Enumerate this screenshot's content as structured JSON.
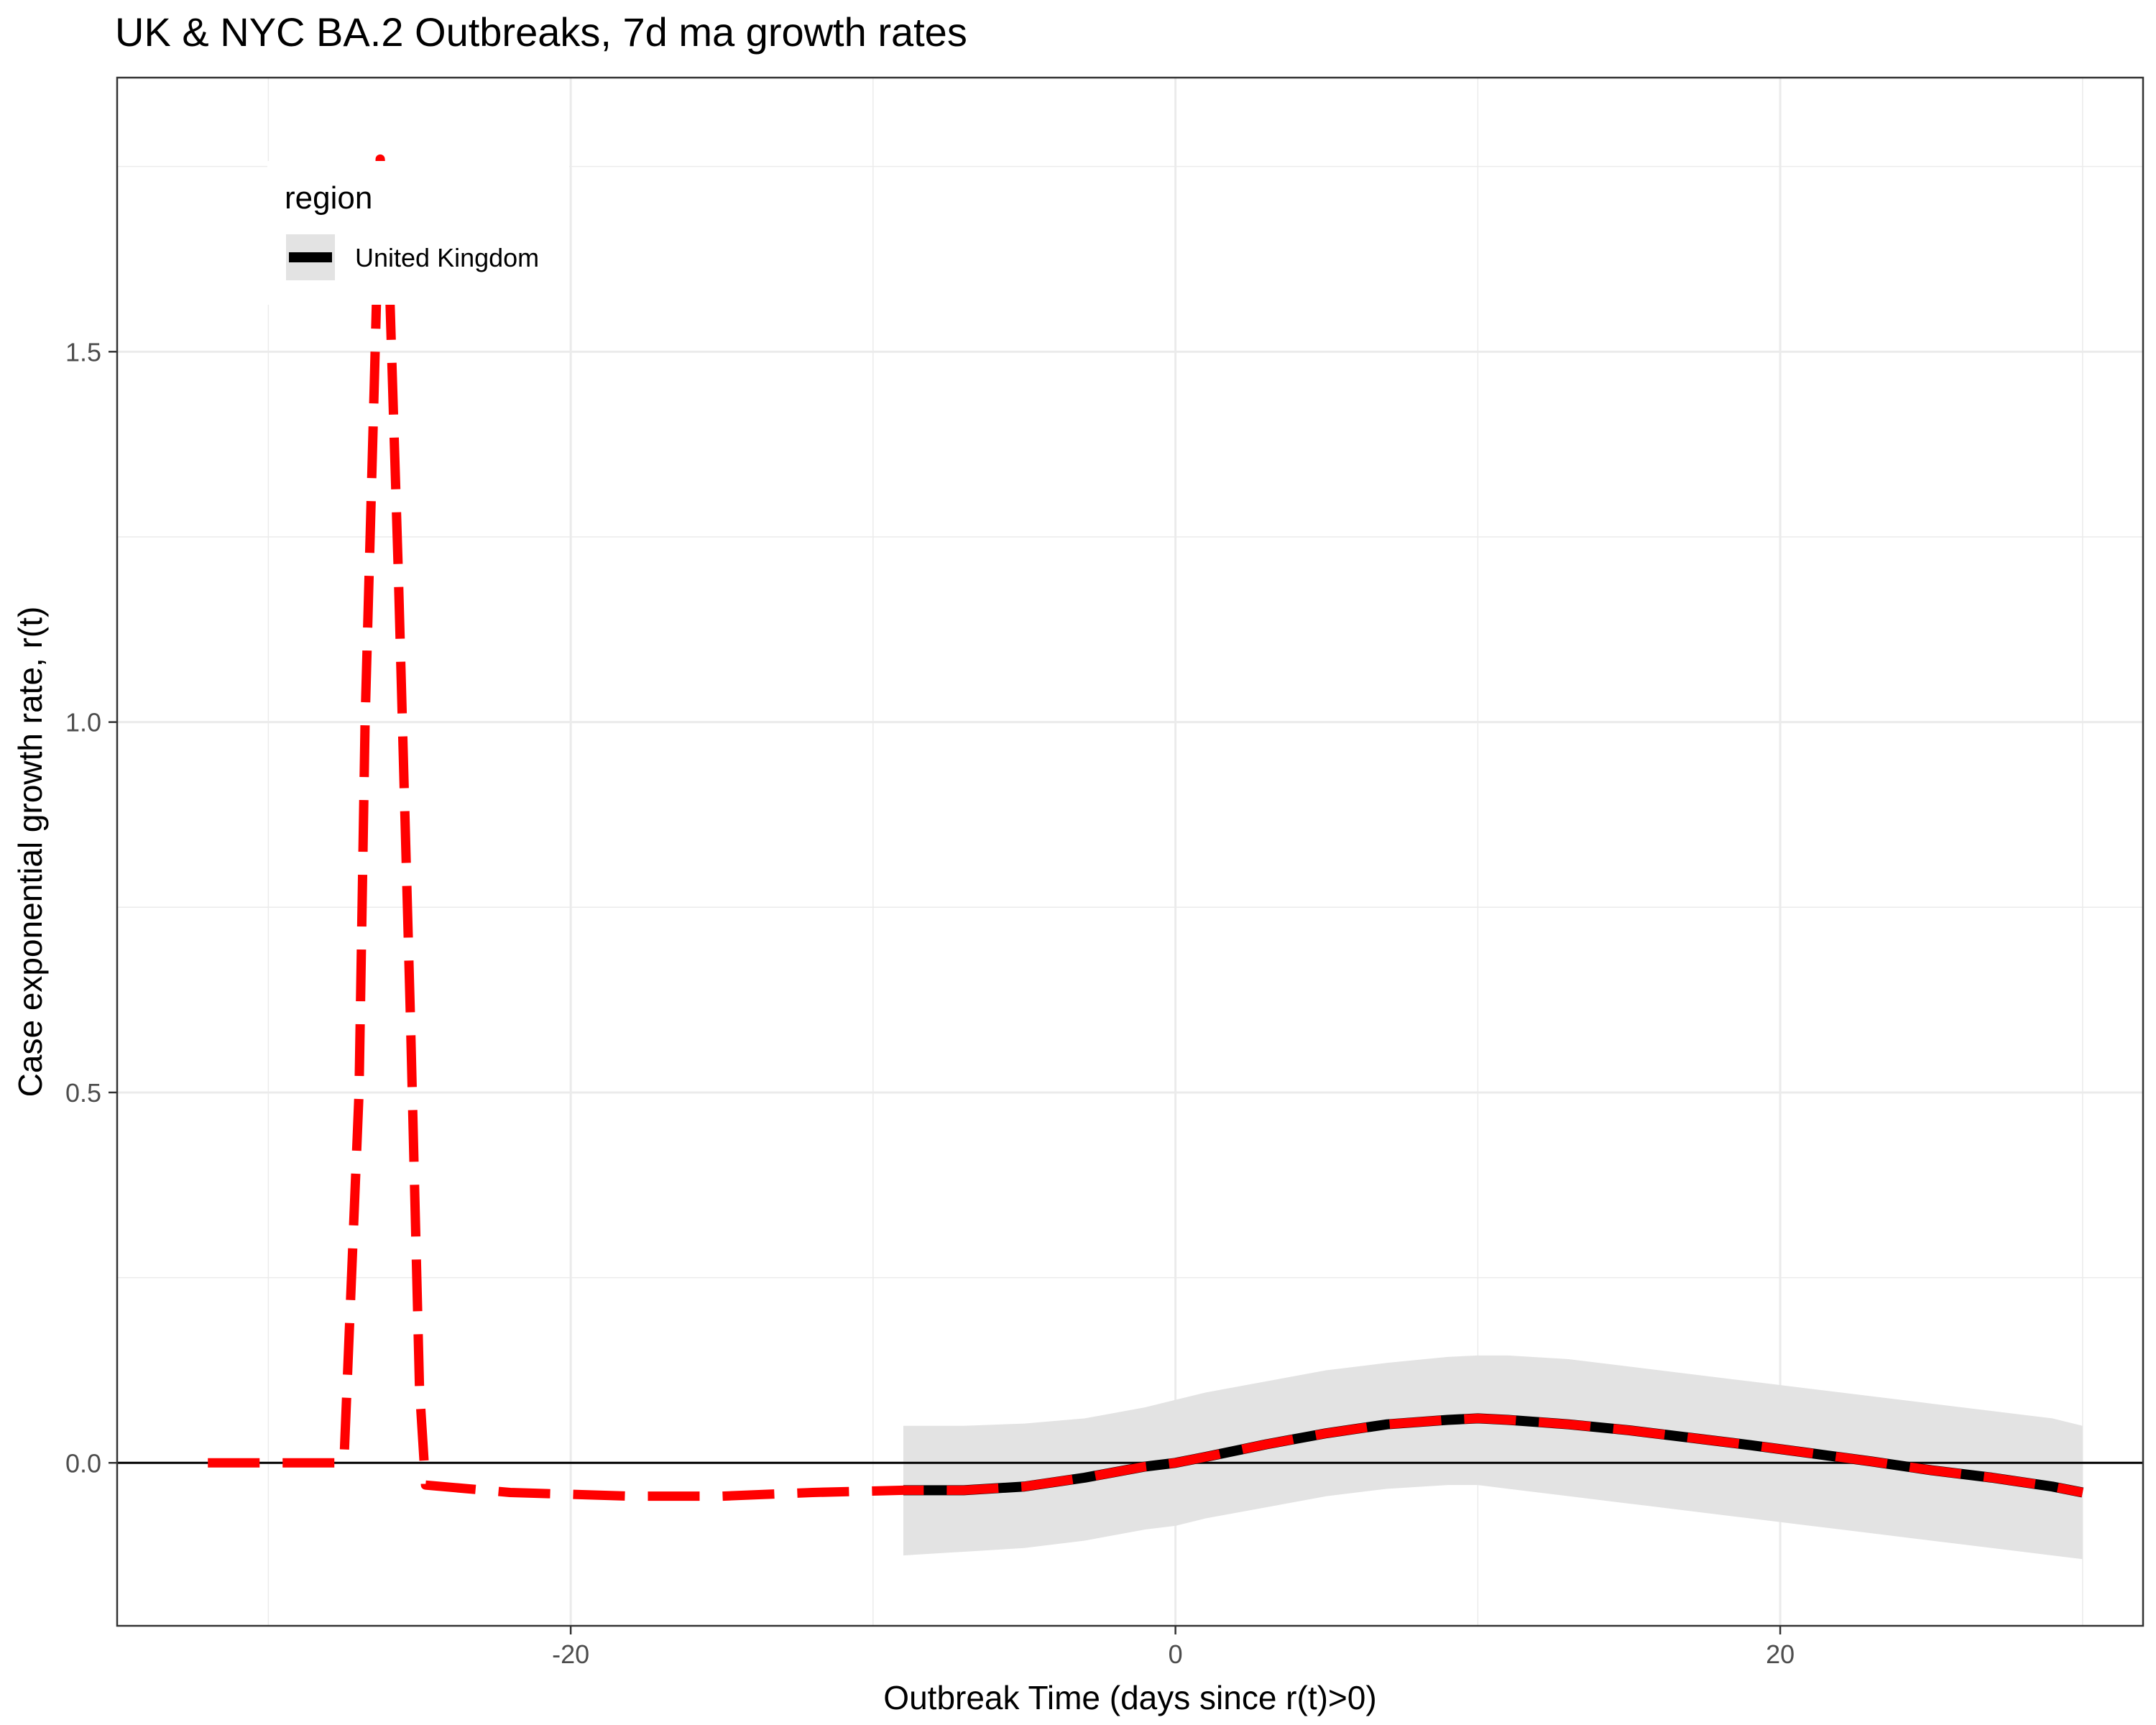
{
  "chart_data": {
    "type": "line",
    "title": "UK & NYC BA.2 Outbreaks, 7d ma growth rates",
    "xlabel": "Outbreak Time (days since r(t)>0)",
    "ylabel": "Case exponential growth rate, r(t)",
    "xlim": [
      -35,
      32
    ],
    "ylim": [
      -0.22,
      1.87
    ],
    "x_ticks": [
      -20,
      0,
      20
    ],
    "x_tick_labels": [
      "-20",
      "0",
      "20"
    ],
    "y_ticks": [
      0.0,
      0.5,
      1.0,
      1.5
    ],
    "y_tick_labels": [
      "0.0",
      "0.5",
      "1.0",
      "1.5"
    ],
    "grid": true,
    "reference_line_y": 0,
    "legend": {
      "title": "region",
      "position": "top-left",
      "entries": [
        "United Kingdom"
      ]
    },
    "series": [
      {
        "name": "United Kingdom",
        "color": "#000000",
        "style": "solid",
        "x": [
          -9,
          -7,
          -5,
          -3,
          -1,
          0,
          1,
          3,
          5,
          7,
          9,
          10,
          11,
          13,
          15,
          17,
          19,
          21,
          23,
          25,
          27,
          29,
          30
        ],
        "y": [
          -0.037,
          -0.037,
          -0.032,
          -0.02,
          -0.005,
          0.0,
          0.008,
          0.025,
          0.04,
          0.052,
          0.058,
          0.06,
          0.058,
          0.052,
          0.044,
          0.034,
          0.024,
          0.013,
          0.002,
          -0.01,
          -0.02,
          -0.032,
          -0.04
        ],
        "ci_lower": [
          -0.125,
          -0.12,
          -0.115,
          -0.105,
          -0.09,
          -0.085,
          -0.075,
          -0.06,
          -0.045,
          -0.035,
          -0.03,
          -0.03,
          -0.035,
          -0.045,
          -0.055,
          -0.065,
          -0.075,
          -0.085,
          -0.095,
          -0.105,
          -0.115,
          -0.125,
          -0.13
        ],
        "ci_upper": [
          0.05,
          0.05,
          0.053,
          0.06,
          0.075,
          0.085,
          0.095,
          0.11,
          0.125,
          0.135,
          0.143,
          0.145,
          0.145,
          0.14,
          0.13,
          0.12,
          0.11,
          0.1,
          0.09,
          0.08,
          0.07,
          0.06,
          0.05
        ]
      },
      {
        "name": "",
        "color": "#ff0000",
        "style": "dashed",
        "x": [
          -32,
          -27.5,
          -27,
          -26.8,
          -26.5,
          -26.3,
          -26,
          -25.7,
          -25.3,
          -25,
          -24.8,
          -22,
          -18,
          -15,
          -12,
          -9,
          -7,
          -5,
          -3,
          -1,
          0,
          1,
          3,
          5,
          7,
          9,
          10,
          11,
          13,
          15,
          17,
          19,
          21,
          23,
          25,
          27,
          29,
          30
        ],
        "y": [
          0.0,
          0.0,
          0.5,
          1.0,
          1.45,
          1.76,
          1.6,
          1.2,
          0.6,
          0.1,
          -0.03,
          -0.04,
          -0.045,
          -0.045,
          -0.04,
          -0.037,
          -0.037,
          -0.032,
          -0.02,
          -0.005,
          0.0,
          0.008,
          0.025,
          0.04,
          0.052,
          0.058,
          0.06,
          0.058,
          0.052,
          0.044,
          0.034,
          0.024,
          0.013,
          0.002,
          -0.01,
          -0.02,
          -0.032,
          -0.04
        ]
      }
    ]
  }
}
